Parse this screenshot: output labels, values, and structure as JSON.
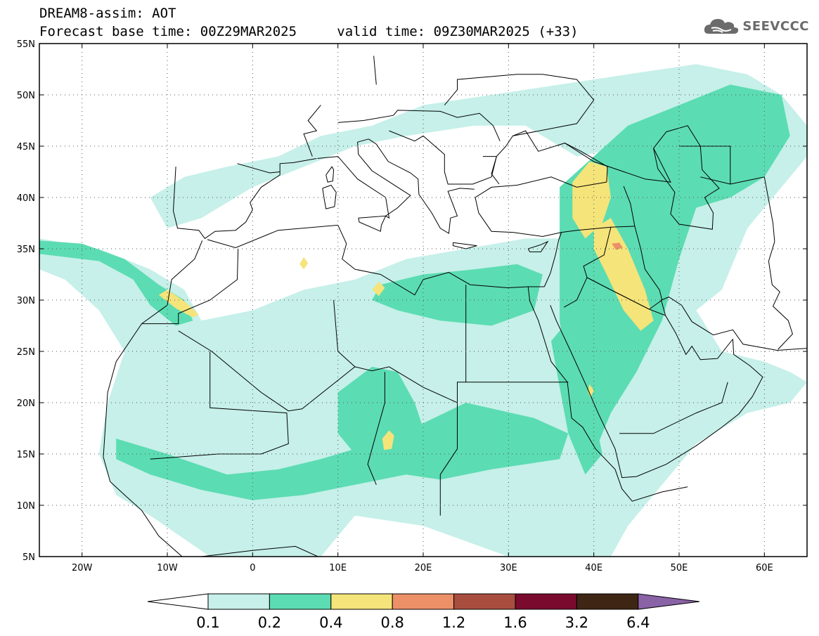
{
  "header": {
    "title": "DREAM8-assim: AOT",
    "base_label": "Forecast base time:",
    "base_time": "00Z29MAR2025",
    "valid_label": "valid time:",
    "valid_time": "09Z30MAR2025",
    "lead": "(+33)"
  },
  "logo": {
    "text": "SEEVCCC",
    "icon": "cloud-logo-icon"
  },
  "map": {
    "projection": "lat-lon",
    "lon_range": [
      -25,
      65
    ],
    "lat_range": [
      5,
      55
    ],
    "lon_ticks": [
      -20,
      -10,
      0,
      10,
      20,
      30,
      40,
      50,
      60
    ],
    "lon_tick_labels": [
      "20W",
      "10W",
      "0",
      "10E",
      "20E",
      "30E",
      "40E",
      "50E",
      "60E"
    ],
    "lat_ticks": [
      55,
      50,
      45,
      40,
      35,
      30,
      25,
      20,
      15,
      10,
      5
    ],
    "lat_tick_labels": [
      "55N",
      "50N",
      "45N",
      "40N",
      "35N",
      "30N",
      "25N",
      "20N",
      "15N",
      "10N",
      "5N"
    ],
    "grid": true
  },
  "colorbar": {
    "labels": [
      "0.1",
      "0.2",
      "0.4",
      "0.8",
      "1.2",
      "1.6",
      "3.2",
      "6.4"
    ],
    "bin_colors": [
      "#c6f0e9",
      "#5cdcb2",
      "#f5e47a",
      "#ec9068",
      "#a84e3e",
      "#7a0a2e",
      "#3e2614"
    ],
    "low_color": "#ffffff",
    "high_color": "#8a62a6"
  },
  "colors": {
    "lvl1": "#c6f0e9",
    "lvl2": "#5cdcb2",
    "lvl3": "#f5e47a",
    "lvl4": "#ec9068",
    "coast": "#000000",
    "border": "#000000"
  }
}
